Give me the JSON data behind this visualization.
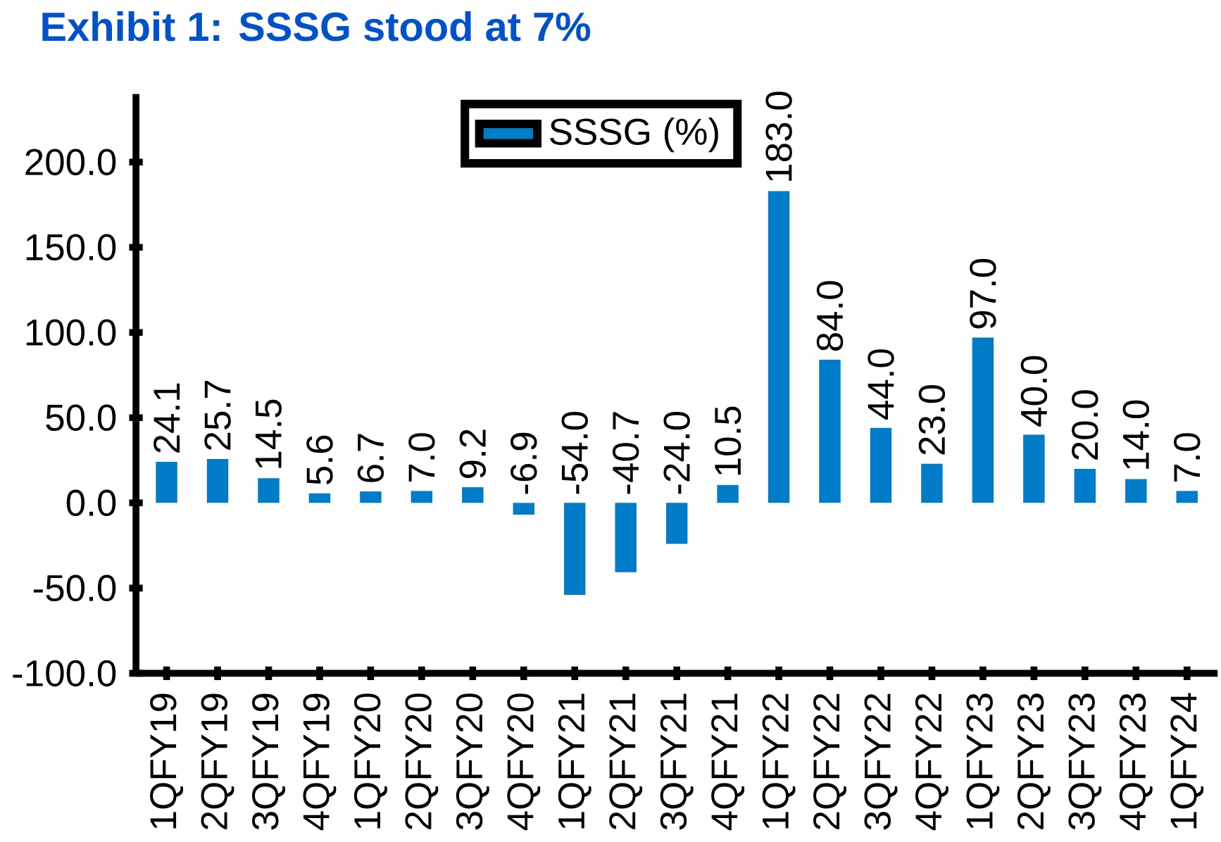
{
  "chart_data": {
    "type": "bar",
    "title": "Exhibit 1: SSSG stood at 7%",
    "categories": [
      "1QFY19",
      "2QFY19",
      "3QFY19",
      "4QFY19",
      "1QFY20",
      "2QFY20",
      "3QFY20",
      "4QFY20",
      "1QFY21",
      "2QFY21",
      "3QFY21",
      "4QFY21",
      "1QFY22",
      "2QFY22",
      "3QFY22",
      "4QFY22",
      "1QFY23",
      "2QFY23",
      "3QFY23",
      "4QFY23",
      "1QFY24"
    ],
    "series": [
      {
        "name": "SSSG (%)",
        "color": "#007cc9",
        "values": [
          24.1,
          25.7,
          14.5,
          5.6,
          6.7,
          7.0,
          9.2,
          -6.9,
          -54.0,
          -40.7,
          -24.0,
          10.5,
          183.0,
          84.0,
          44.0,
          23.0,
          97.0,
          40.0,
          20.0,
          14.0,
          7.0
        ],
        "value_labels": [
          "24.1",
          "25.7",
          "14.5",
          "5.6",
          "6.7",
          "7.0",
          "9.2",
          "-6.9",
          "-54.0",
          "-40.7",
          "-24.0",
          "10.5",
          "183.0",
          "84.0",
          "44.0",
          "23.0",
          "97.0",
          "40.0",
          "20.0",
          "14.0",
          "7.0"
        ]
      }
    ],
    "ylim": [
      -100,
      240
    ],
    "yticks": [
      {
        "value": -100,
        "label": "-100.0"
      },
      {
        "value": -50,
        "label": "-50.0"
      },
      {
        "value": 0,
        "label": "0.0"
      },
      {
        "value": 50,
        "label": "50.0"
      },
      {
        "value": 100,
        "label": "100.0"
      },
      {
        "value": 150,
        "label": "150.0"
      },
      {
        "value": 200,
        "label": "200.0"
      }
    ],
    "grid": false,
    "legend": "top"
  }
}
